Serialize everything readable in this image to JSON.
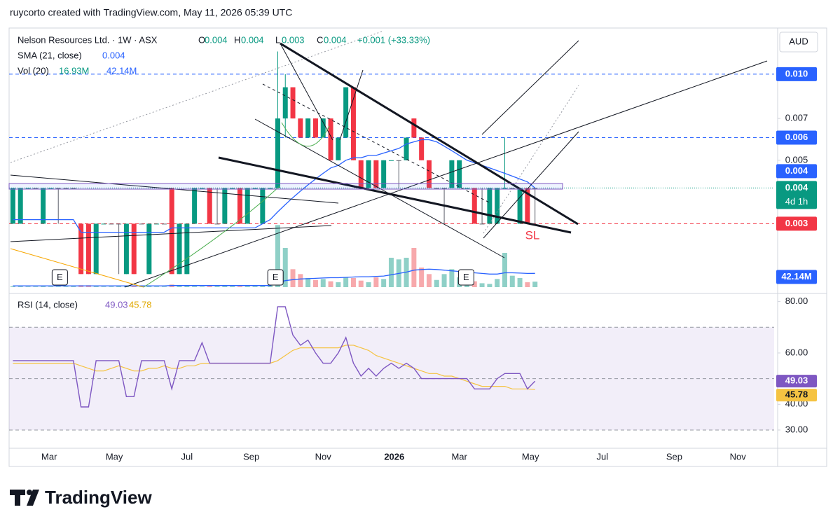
{
  "header": {
    "credit": "ruycorto created with TradingView.com, May 11, 2026 05:39 UTC"
  },
  "footer": {
    "brand": "TradingView"
  },
  "chart_data": {
    "type": "candlestick",
    "symbol": "Nelson Resources Ltd. · 1W · ASX",
    "ohlc_labels": [
      "O",
      "H",
      "L",
      "C"
    ],
    "change": "+0.001 (+33.33%)",
    "currency": "AUD",
    "countdown": "4d 1h",
    "log_scale": true,
    "ylim": [
      0.0018,
      0.0145
    ],
    "yticks": [
      0.007,
      0.005
    ],
    "hlines": [
      {
        "value": 0.01,
        "label": "0.010",
        "color": "#2962ff"
      },
      {
        "value": 0.006,
        "label": "0.006",
        "color": "#2962ff"
      },
      {
        "value": 0.003,
        "label": "0.003",
        "color": "#f23645"
      }
    ],
    "xlim": [
      -0.5,
      100.6
    ],
    "xticks": [
      {
        "value": 4.8,
        "label": "Mar"
      },
      {
        "value": 13.4,
        "label": "May"
      },
      {
        "value": 23,
        "label": "Jul"
      },
      {
        "value": 31.5,
        "label": "Sep"
      },
      {
        "value": 41,
        "label": "Nov"
      },
      {
        "value": 50.4,
        "label": "2026"
      },
      {
        "value": 59,
        "label": "Mar"
      },
      {
        "value": 68.4,
        "label": "May"
      },
      {
        "value": 77.9,
        "label": "Jul"
      },
      {
        "value": 87.4,
        "label": "Sep"
      },
      {
        "value": 95.8,
        "label": "Nov"
      }
    ],
    "colors": {
      "up": "#089981",
      "down": "#f23645",
      "vol_up": "#8fd0c7",
      "vol_down": "#f7a9ac"
    },
    "ohlc": [
      [
        0.003,
        0.004,
        0.003,
        0.004
      ],
      [
        0.003,
        0.004,
        0.003,
        0.004
      ],
      [
        0.004,
        0.004,
        0.004,
        0.004
      ],
      [
        0.004,
        0.004,
        0.004,
        0.004
      ],
      [
        0.003,
        0.004,
        0.003,
        0.004
      ],
      [
        0.004,
        0.004,
        0.004,
        0.004
      ],
      [
        0.004,
        0.004,
        0.003,
        0.004
      ],
      [
        0.004,
        0.004,
        0.004,
        0.004
      ],
      [
        0.004,
        0.004,
        0.004,
        0.004
      ],
      [
        0.003,
        0.003,
        0.002,
        0.002
      ],
      [
        0.003,
        0.003,
        0.002,
        0.002
      ],
      [
        0.002,
        0.003,
        0.002,
        0.003
      ],
      [
        0.003,
        0.003,
        0.003,
        0.003
      ],
      [
        0.003,
        0.003,
        0.003,
        0.003
      ],
      [
        0.003,
        0.003,
        0.002,
        0.003
      ],
      [
        0.002,
        0.003,
        0.002,
        0.003
      ],
      [
        0.003,
        0.003,
        0.002,
        0.002
      ],
      [
        0.003,
        0.003,
        0.003,
        0.003
      ],
      [
        0.002,
        0.003,
        0.002,
        0.003
      ],
      [
        0.003,
        0.003,
        0.003,
        0.003
      ],
      [
        0.003,
        0.003,
        0.003,
        0.003
      ],
      [
        0.004,
        0.004,
        0.002,
        0.002
      ],
      [
        0.002,
        0.003,
        0.002,
        0.003
      ],
      [
        0.002,
        0.003,
        0.002,
        0.003
      ],
      [
        0.003,
        0.004,
        0.003,
        0.004
      ],
      [
        0.004,
        0.004,
        0.004,
        0.004
      ],
      [
        0.004,
        0.004,
        0.003,
        0.003
      ],
      [
        0.003,
        0.004,
        0.003,
        0.003
      ],
      [
        0.003,
        0.004,
        0.003,
        0.004
      ],
      [
        0.004,
        0.004,
        0.004,
        0.004
      ],
      [
        0.004,
        0.004,
        0.003,
        0.003
      ],
      [
        0.003,
        0.004,
        0.003,
        0.004
      ],
      [
        0.004,
        0.004,
        0.004,
        0.004
      ],
      [
        0.003,
        0.004,
        0.003,
        0.004
      ],
      [
        0.004,
        0.004,
        0.004,
        0.004
      ],
      [
        0.004,
        0.012,
        0.004,
        0.007
      ],
      [
        0.007,
        0.01,
        0.006,
        0.009
      ],
      [
        0.009,
        0.009,
        0.007,
        0.007
      ],
      [
        0.007,
        0.007,
        0.006,
        0.006
      ],
      [
        0.006,
        0.007,
        0.006,
        0.007
      ],
      [
        0.007,
        0.007,
        0.006,
        0.006
      ],
      [
        0.006,
        0.007,
        0.006,
        0.007
      ],
      [
        0.007,
        0.007,
        0.005,
        0.005
      ],
      [
        0.005,
        0.006,
        0.005,
        0.006
      ],
      [
        0.006,
        0.009,
        0.006,
        0.009
      ],
      [
        0.009,
        0.009,
        0.005,
        0.005
      ],
      [
        0.005,
        0.005,
        0.004,
        0.004
      ],
      [
        0.004,
        0.005,
        0.004,
        0.005
      ],
      [
        0.005,
        0.005,
        0.004,
        0.004
      ],
      [
        0.004,
        0.005,
        0.004,
        0.005
      ],
      [
        0.005,
        0.005,
        0.005,
        0.005
      ],
      [
        0.005,
        0.005,
        0.004,
        0.005
      ],
      [
        0.005,
        0.006,
        0.005,
        0.006
      ],
      [
        0.007,
        0.007,
        0.006,
        0.006
      ],
      [
        0.006,
        0.006,
        0.005,
        0.005
      ],
      [
        0.005,
        0.005,
        0.004,
        0.004
      ],
      [
        0.004,
        0.004,
        0.004,
        0.004
      ],
      [
        0.004,
        0.004,
        0.003,
        0.004
      ],
      [
        0.004,
        0.005,
        0.004,
        0.005
      ],
      [
        0.004,
        0.005,
        0.004,
        0.005
      ],
      [
        0.004,
        0.004,
        0.004,
        0.004
      ],
      [
        0.004,
        0.004,
        0.003,
        0.003
      ],
      [
        0.003,
        0.004,
        0.003,
        0.003
      ],
      [
        0.003,
        0.004,
        0.003,
        0.004
      ],
      [
        0.003,
        0.004,
        0.003,
        0.004
      ],
      [
        0.004,
        0.006,
        0.004,
        0.004
      ],
      [
        0.004,
        0.004,
        0.004,
        0.004
      ],
      [
        0.003,
        0.004,
        0.003,
        0.004
      ],
      [
        0.004,
        0.004,
        0.003,
        0.003
      ],
      [
        0.004,
        0.004,
        0.003,
        0.004
      ]
    ],
    "sma": {
      "name": "SMA (21, close)",
      "color": "#2962ff",
      "values": [
        0.0031,
        0.0031,
        0.0031,
        0.0031,
        0.0031,
        0.0031,
        0.0031,
        0.0031,
        0.0031,
        0.0028,
        0.0028,
        0.0028,
        0.0028,
        0.0028,
        0.0028,
        0.0028,
        0.0028,
        0.0028,
        0.0028,
        0.0028,
        0.0028,
        0.0029,
        0.0029,
        0.0029,
        0.0029,
        0.0029,
        0.0029,
        0.0029,
        0.0029,
        0.0029,
        0.0029,
        0.0029,
        0.0029,
        0.003,
        0.0031,
        0.0033,
        0.0035,
        0.0037,
        0.0039,
        0.0041,
        0.0043,
        0.0045,
        0.0047,
        0.0048,
        0.005,
        0.0051,
        0.0051,
        0.0052,
        0.0052,
        0.0053,
        0.0054,
        0.0055,
        0.0057,
        0.0058,
        0.0059,
        0.0059,
        0.0058,
        0.0056,
        0.0054,
        0.0052,
        0.005,
        0.0049,
        0.0048,
        0.0047,
        0.0046,
        0.0045,
        0.0044,
        0.0043,
        0.0042,
        0.004
      ]
    },
    "volume": {
      "name": "Vol (20)",
      "ylim": [
        0,
        210
      ],
      "last_label": "16.93M",
      "values": [
        3,
        3,
        2,
        2,
        4,
        2,
        2,
        2,
        3,
        6,
        6,
        3,
        2,
        2,
        3,
        5,
        5,
        3,
        3,
        2,
        2,
        8,
        4,
        4,
        3,
        2,
        4,
        3,
        5,
        3,
        3,
        3,
        3,
        4,
        10,
        190,
        120,
        55,
        40,
        28,
        22,
        25,
        18,
        15,
        30,
        28,
        20,
        15,
        30,
        25,
        90,
        85,
        90,
        120,
        60,
        40,
        22,
        40,
        55,
        30,
        22,
        18,
        12,
        10,
        25,
        105,
        35,
        28,
        15,
        16.93
      ],
      "ma": {
        "color": "#2962ff",
        "last_label": "42.14M",
        "values": [
          4,
          4,
          4,
          4,
          4,
          4,
          4,
          4,
          4,
          4,
          4,
          4,
          4,
          4,
          4,
          4,
          4,
          4,
          4,
          4,
          4,
          5,
          5,
          5,
          5,
          5,
          5,
          5,
          5,
          5,
          5,
          5,
          5,
          5,
          5,
          14,
          20,
          23,
          25,
          26,
          27,
          28,
          29,
          29,
          30,
          31,
          32,
          32,
          33,
          34,
          38,
          42,
          46,
          52,
          54,
          55,
          54,
          52,
          50,
          48,
          46,
          44,
          42,
          40,
          40,
          44,
          44,
          43,
          42,
          42.14
        ]
      }
    },
    "events": [
      {
        "label": "E",
        "x": 6.2
      },
      {
        "label": "E",
        "x": 34.7
      },
      {
        "label": "E",
        "x": 59.9
      }
    ],
    "annotations": [
      {
        "text": "SL",
        "color": "#f23645"
      }
    ],
    "rsi": {
      "name": "RSI (14, close)",
      "color": "#7e57c2",
      "ylim": [
        22.9,
        81.8
      ],
      "yticks": [
        {
          "value": 80,
          "label": "80.00"
        },
        {
          "value": 60,
          "label": "60.00"
        },
        {
          "value": 40,
          "label": "40.00"
        },
        {
          "value": 30,
          "label": "30.00"
        }
      ],
      "bands": [
        70,
        50,
        30
      ],
      "values": [
        57,
        57,
        57,
        57,
        57,
        57,
        57,
        57,
        57,
        39,
        39,
        57,
        57,
        57,
        57,
        43,
        43,
        57,
        57,
        57,
        57,
        46,
        57,
        57,
        57,
        64,
        56,
        56,
        56,
        56,
        56,
        56,
        56,
        56,
        56,
        78,
        78,
        67,
        63,
        65,
        60,
        56,
        56,
        60,
        66,
        56,
        51,
        54,
        51,
        54,
        56,
        54,
        56,
        54,
        50,
        50,
        50,
        50,
        50,
        50,
        50,
        46,
        46,
        46,
        50,
        52,
        52,
        52,
        46,
        49.03
      ],
      "ma": {
        "color": "#f5c342",
        "values": [
          56,
          56,
          56,
          56,
          56,
          56,
          56,
          56,
          56,
          55,
          54,
          53,
          53,
          54,
          55,
          54,
          53,
          53,
          54,
          54,
          55,
          54,
          54,
          55,
          55,
          56,
          56,
          56,
          56,
          56,
          56,
          56,
          56,
          56,
          56,
          57,
          59,
          61,
          62,
          62,
          62,
          62,
          62,
          62,
          63,
          63,
          62,
          61,
          59,
          58,
          57,
          56,
          55,
          54,
          53,
          52,
          52,
          51,
          51,
          50,
          49,
          48,
          47,
          47,
          47,
          47,
          46,
          46,
          46,
          45.78
        ]
      }
    }
  }
}
